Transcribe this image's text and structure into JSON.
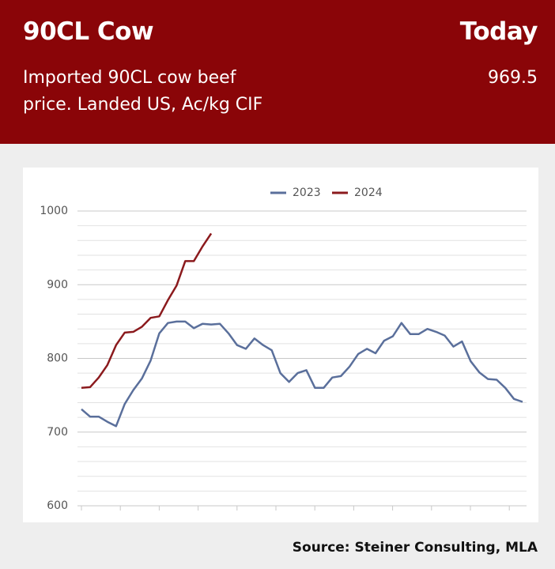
{
  "header": {
    "title": "90CL Cow",
    "today_label": "Today",
    "subtitle_lines": [
      "Imported 90CL cow beef",
      "price. Landed US, Ac/kg CIF"
    ],
    "today_value": "969.5"
  },
  "chart_data": {
    "type": "line",
    "categories": [
      null,
      null,
      null,
      null,
      null,
      null,
      null,
      null,
      null,
      null,
      null,
      null,
      null,
      null,
      null,
      null,
      null,
      null,
      null,
      null,
      null,
      null,
      null,
      null,
      null,
      null,
      null,
      null,
      null,
      null,
      null,
      null,
      null,
      null,
      null,
      null,
      null,
      null,
      null,
      null,
      null,
      null,
      null,
      null,
      null,
      null,
      null,
      null,
      null,
      null,
      null,
      null
    ],
    "series": [
      {
        "name": "2023",
        "color": "#5a6f9b",
        "values": [
          731,
          721,
          721,
          714,
          708,
          738,
          757,
          773,
          797,
          834,
          848,
          850,
          850,
          841,
          847,
          846,
          847,
          834,
          818,
          813,
          827,
          818,
          811,
          780,
          768,
          780,
          784,
          760,
          760,
          774,
          776,
          789,
          806,
          813,
          807,
          824,
          830,
          848,
          833,
          833,
          840,
          836,
          831,
          816,
          823,
          796,
          781,
          772,
          771,
          760,
          745,
          741
        ]
      },
      {
        "name": "2024",
        "color": "#8b1a1d",
        "values": [
          760,
          761,
          774,
          791,
          818,
          835,
          836,
          843,
          855,
          857,
          879,
          899,
          932,
          932,
          952,
          969.5,
          null,
          null,
          null,
          null,
          null,
          null,
          null,
          null,
          null,
          null,
          null,
          null,
          null,
          null,
          null,
          null,
          null,
          null,
          null,
          null,
          null,
          null,
          null,
          null,
          null,
          null,
          null,
          null,
          null,
          null,
          null,
          null,
          null,
          null,
          null,
          null
        ]
      }
    ],
    "ylim": [
      600,
      1000
    ],
    "yticks": [
      600,
      700,
      800,
      900,
      1000
    ],
    "minor_yticks": [
      620,
      640,
      660,
      680,
      720,
      740,
      760,
      780,
      820,
      840,
      860,
      880,
      920,
      940,
      960,
      980
    ],
    "grid": true,
    "legend": "top"
  },
  "source": "Source: Steiner Consulting, MLA"
}
